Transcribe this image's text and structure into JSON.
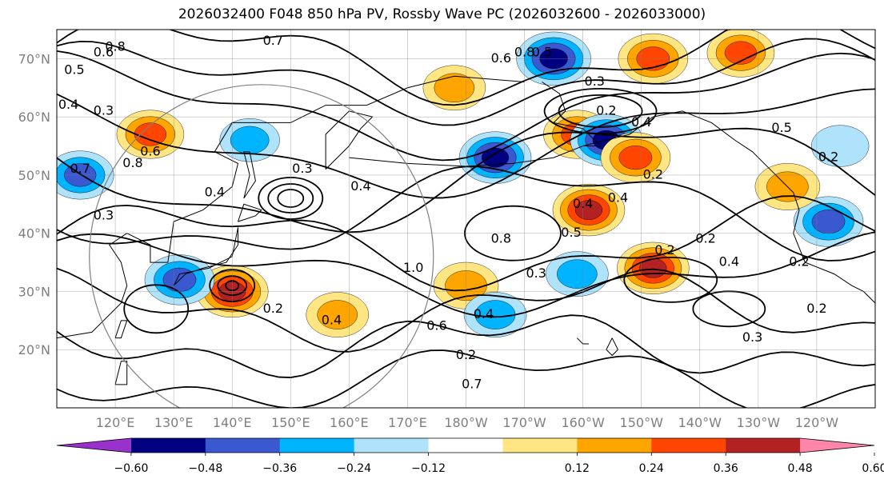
{
  "title": "2026032400 F048 850 hPa PV, Rossby Wave PC (2026032600 - 2026033000)",
  "chart_data": {
    "type": "contour map",
    "variable": "850 hPa PV",
    "shaded_field": "Rossby Wave PC",
    "lon_range": [
      110,
      250
    ],
    "lat_range": [
      10,
      75
    ],
    "lat_ticks": [
      {
        "value": 70,
        "label": "70°N"
      },
      {
        "value": 60,
        "label": "60°N"
      },
      {
        "value": 50,
        "label": "50°N"
      },
      {
        "value": 40,
        "label": "40°N"
      },
      {
        "value": 30,
        "label": "30°N"
      },
      {
        "value": 20,
        "label": "20°N"
      }
    ],
    "lon_ticks": [
      {
        "value": 120,
        "label": "120°E"
      },
      {
        "value": 130,
        "label": "130°E"
      },
      {
        "value": 140,
        "label": "140°E"
      },
      {
        "value": 150,
        "label": "150°E"
      },
      {
        "value": 160,
        "label": "160°E"
      },
      {
        "value": 170,
        "label": "170°E"
      },
      {
        "value": 180,
        "label": "180°W"
      },
      {
        "value": 190,
        "label": "170°W"
      },
      {
        "value": 200,
        "label": "160°W"
      },
      {
        "value": 210,
        "label": "150°W"
      },
      {
        "value": 220,
        "label": "140°W"
      },
      {
        "value": 230,
        "label": "130°W"
      },
      {
        "value": 240,
        "label": "120°W"
      }
    ],
    "grid": true,
    "colorbar": {
      "orientation": "horizontal",
      "extend": "both",
      "ticks": [
        {
          "value": -0.6,
          "label": "−0.60"
        },
        {
          "value": -0.48,
          "label": "−0.48"
        },
        {
          "value": -0.36,
          "label": "−0.36"
        },
        {
          "value": -0.24,
          "label": "−0.24"
        },
        {
          "value": -0.12,
          "label": "−0.12"
        },
        {
          "value": 0.12,
          "label": "0.12"
        },
        {
          "value": 0.24,
          "label": "0.24"
        },
        {
          "value": 0.36,
          "label": "0.36"
        },
        {
          "value": 0.48,
          "label": "0.48"
        },
        {
          "value": 0.6,
          "label": "0.60"
        }
      ],
      "bins": [
        {
          "from": null,
          "to": -0.6,
          "color": "#9932cc"
        },
        {
          "from": -0.6,
          "to": -0.48,
          "color": "#000080"
        },
        {
          "from": -0.48,
          "to": -0.36,
          "color": "#3a58cf"
        },
        {
          "from": -0.36,
          "to": -0.24,
          "color": "#00b4ff"
        },
        {
          "from": -0.24,
          "to": -0.12,
          "color": "#aee3fb"
        },
        {
          "from": -0.12,
          "to": 0.12,
          "color": "#ffffff"
        },
        {
          "from": 0.12,
          "to": 0.24,
          "color": "#ffe682"
        },
        {
          "from": 0.24,
          "to": 0.36,
          "color": "#ffa500"
        },
        {
          "from": 0.36,
          "to": 0.48,
          "color": "#ff4500"
        },
        {
          "from": 0.48,
          "to": 0.6,
          "color": "#b22222"
        },
        {
          "from": 0.6,
          "to": null,
          "color": "#ff85a9"
        }
      ]
    },
    "contour_labels": [
      "0.8",
      "0.7",
      "0.6",
      "0.5",
      "0.4",
      "0.3",
      "0.6",
      "0.7",
      "0.8",
      "0.4",
      "0.3",
      "0.4",
      "0.2",
      "0.6",
      "1.0",
      "0.8",
      "0.6",
      "0.5",
      "0.3",
      "0.4",
      "0.2",
      "0.4",
      "0.8",
      "0.5",
      "0.3",
      "0.2",
      "0.4",
      "0.5",
      "0.2",
      "0.4",
      "0.2",
      "0.2",
      "0.7",
      "0.4",
      "0.3",
      "0.4",
      "0.2",
      "0.2",
      "0.3",
      "0.2"
    ],
    "anomalies": [
      {
        "lon": 126,
        "lat": 57,
        "value": 0.4
      },
      {
        "lon": 114,
        "lat": 50,
        "value": -0.4
      },
      {
        "lon": 140,
        "lat": 30,
        "value": 0.5
      },
      {
        "lon": 131,
        "lat": 32,
        "value": -0.45
      },
      {
        "lon": 143,
        "lat": 56,
        "value": -0.25
      },
      {
        "lon": 185,
        "lat": 53,
        "value": -0.5
      },
      {
        "lon": 178,
        "lat": 65,
        "value": 0.3
      },
      {
        "lon": 180,
        "lat": 31,
        "value": 0.35
      },
      {
        "lon": 185,
        "lat": 26,
        "value": -0.3
      },
      {
        "lon": 158,
        "lat": 26,
        "value": 0.3
      },
      {
        "lon": 195,
        "lat": 70,
        "value": -0.55
      },
      {
        "lon": 199,
        "lat": 57,
        "value": 0.4
      },
      {
        "lon": 204,
        "lat": 56,
        "value": -0.5
      },
      {
        "lon": 209,
        "lat": 53,
        "value": 0.45
      },
      {
        "lon": 201,
        "lat": 44,
        "value": 0.5
      },
      {
        "lon": 212,
        "lat": 34,
        "value": 0.5
      },
      {
        "lon": 212,
        "lat": 70,
        "value": 0.45
      },
      {
        "lon": 227,
        "lat": 71,
        "value": 0.4
      },
      {
        "lon": 242,
        "lat": 42,
        "value": -0.45
      },
      {
        "lon": 235,
        "lat": 48,
        "value": 0.35
      },
      {
        "lon": 244,
        "lat": 55,
        "value": -0.2
      },
      {
        "lon": 199,
        "lat": 33,
        "value": -0.3
      }
    ]
  }
}
